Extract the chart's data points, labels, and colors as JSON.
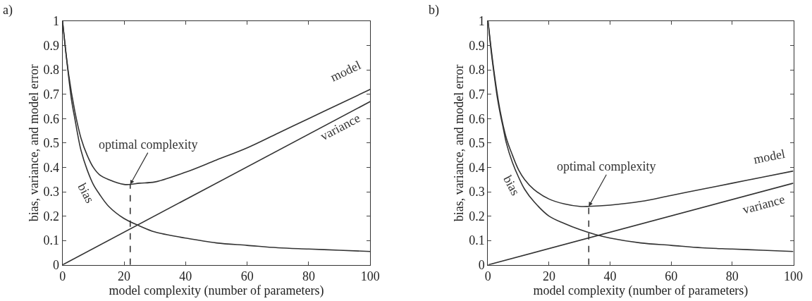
{
  "chart_data": [
    {
      "type": "line",
      "title": "a)",
      "xlabel": "model complexity (number of parameters)",
      "ylabel": "bias, variance, and model error",
      "xlim": [
        0,
        100
      ],
      "ylim": [
        0,
        1
      ],
      "xticks": [
        0,
        20,
        40,
        60,
        80,
        100
      ],
      "yticks": [
        0,
        0.1,
        0.2,
        0.3,
        0.4,
        0.5,
        0.6,
        0.7,
        0.8,
        0.9,
        1
      ],
      "marker": "none",
      "annotations": [
        {
          "text": "optimal complexity",
          "x": 22,
          "y": 0.33
        }
      ],
      "series": [
        {
          "name": "model",
          "color": "#333333",
          "x": [
            0,
            2,
            4,
            6,
            8,
            10,
            12,
            15,
            20,
            22,
            25,
            30,
            40,
            50,
            60,
            70,
            80,
            90,
            100
          ],
          "values": [
            1.0,
            0.78,
            0.63,
            0.52,
            0.45,
            0.4,
            0.37,
            0.35,
            0.33,
            0.33,
            0.335,
            0.34,
            0.38,
            0.43,
            0.48,
            0.54,
            0.6,
            0.66,
            0.72
          ]
        },
        {
          "name": "variance",
          "color": "#333333",
          "x": [
            0,
            100
          ],
          "values": [
            0,
            0.67
          ]
        },
        {
          "name": "bias",
          "color": "#333333",
          "x": [
            0,
            1,
            2,
            3,
            4,
            5,
            6,
            8,
            10,
            12,
            15,
            20,
            25,
            30,
            40,
            50,
            60,
            70,
            80,
            90,
            100
          ],
          "values": [
            1.0,
            0.88,
            0.77,
            0.67,
            0.6,
            0.53,
            0.47,
            0.39,
            0.33,
            0.29,
            0.24,
            0.19,
            0.16,
            0.135,
            0.11,
            0.09,
            0.08,
            0.07,
            0.065,
            0.06,
            0.055
          ]
        },
        {
          "color": "#333333",
          "line_style": "dashed",
          "x": [
            22,
            22
          ],
          "values": [
            0,
            0.33
          ]
        }
      ]
    },
    {
      "type": "line",
      "title": "b)",
      "xlabel": "model complexity (number of parameters)",
      "ylabel": "bias, variance, and model error",
      "xlim": [
        0,
        100
      ],
      "ylim": [
        0,
        1
      ],
      "xticks": [
        0,
        20,
        40,
        60,
        80,
        100
      ],
      "yticks": [
        0,
        0.1,
        0.2,
        0.3,
        0.4,
        0.5,
        0.6,
        0.7,
        0.8,
        0.9,
        1
      ],
      "marker": "none",
      "annotations": [
        {
          "text": "optimal complexity",
          "x": 33,
          "y": 0.24
        }
      ],
      "series": [
        {
          "name": "model",
          "color": "#333333",
          "x": [
            0,
            2,
            4,
            6,
            8,
            10,
            12,
            15,
            20,
            25,
            30,
            33,
            40,
            50,
            60,
            70,
            80,
            90,
            100
          ],
          "values": [
            1.0,
            0.79,
            0.63,
            0.52,
            0.45,
            0.39,
            0.35,
            0.31,
            0.27,
            0.25,
            0.24,
            0.24,
            0.245,
            0.26,
            0.285,
            0.31,
            0.335,
            0.36,
            0.385
          ]
        },
        {
          "name": "variance",
          "color": "#333333",
          "x": [
            0,
            100
          ],
          "values": [
            0,
            0.335
          ]
        },
        {
          "name": "bias",
          "color": "#333333",
          "x": [
            0,
            1,
            2,
            3,
            4,
            5,
            6,
            8,
            10,
            12,
            15,
            20,
            25,
            30,
            35,
            40,
            50,
            60,
            70,
            80,
            90,
            100
          ],
          "values": [
            1.0,
            0.88,
            0.78,
            0.69,
            0.62,
            0.56,
            0.5,
            0.42,
            0.36,
            0.31,
            0.26,
            0.2,
            0.17,
            0.145,
            0.125,
            0.11,
            0.09,
            0.08,
            0.07,
            0.065,
            0.06,
            0.055
          ]
        },
        {
          "color": "#333333",
          "line_style": "dashed",
          "x": [
            33,
            33
          ],
          "values": [
            0,
            0.24
          ]
        }
      ]
    }
  ]
}
